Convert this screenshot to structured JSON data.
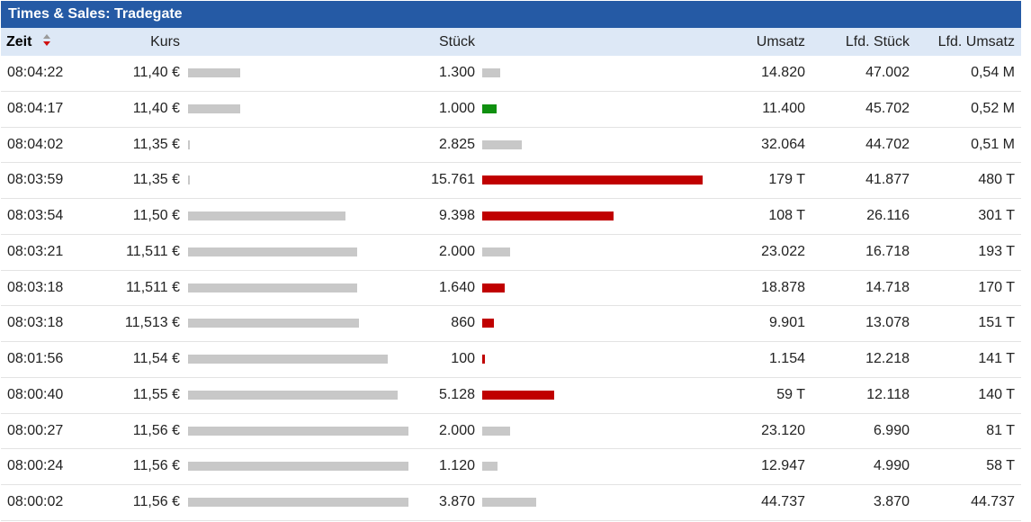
{
  "title": "Times & Sales: Tradegate",
  "columns": {
    "zeit": "Zeit",
    "kurs": "Kurs",
    "stueck": "Stück",
    "umsatz": "Umsatz",
    "lfd_stueck": "Lfd. Stück",
    "lfd_umsatz": "Lfd. Umsatz"
  },
  "sort": {
    "column": "zeit",
    "direction": "descending",
    "icon": "sort-desc-icon"
  },
  "colors": {
    "title_bar": "#255aa5",
    "header_bg": "#dde8f6",
    "neutral_bar": "#c8c8c8",
    "up_bar": "#109010",
    "down_bar": "#c00000"
  },
  "rows": [
    {
      "zeit": "08:04:22",
      "kurs": "11,40 €",
      "kurs_value": 11.4,
      "stueck": "1.300",
      "stueck_value": 1300,
      "direction": "neutral",
      "umsatz": "14.820",
      "lfd_stueck": "47.002",
      "lfd_umsatz": "0,54 M"
    },
    {
      "zeit": "08:04:17",
      "kurs": "11,40 €",
      "kurs_value": 11.4,
      "stueck": "1.000",
      "stueck_value": 1000,
      "direction": "up",
      "umsatz": "11.400",
      "lfd_stueck": "45.702",
      "lfd_umsatz": "0,52 M"
    },
    {
      "zeit": "08:04:02",
      "kurs": "11,35 €",
      "kurs_value": 11.35,
      "stueck": "2.825",
      "stueck_value": 2825,
      "direction": "neutral",
      "umsatz": "32.064",
      "lfd_stueck": "44.702",
      "lfd_umsatz": "0,51 M"
    },
    {
      "zeit": "08:03:59",
      "kurs": "11,35 €",
      "kurs_value": 11.35,
      "stueck": "15.761",
      "stueck_value": 15761,
      "direction": "down",
      "umsatz": "179 T",
      "lfd_stueck": "41.877",
      "lfd_umsatz": "480 T"
    },
    {
      "zeit": "08:03:54",
      "kurs": "11,50 €",
      "kurs_value": 11.5,
      "stueck": "9.398",
      "stueck_value": 9398,
      "direction": "down",
      "umsatz": "108 T",
      "lfd_stueck": "26.116",
      "lfd_umsatz": "301 T"
    },
    {
      "zeit": "08:03:21",
      "kurs": "11,511 €",
      "kurs_value": 11.511,
      "stueck": "2.000",
      "stueck_value": 2000,
      "direction": "neutral",
      "umsatz": "23.022",
      "lfd_stueck": "16.718",
      "lfd_umsatz": "193 T"
    },
    {
      "zeit": "08:03:18",
      "kurs": "11,511 €",
      "kurs_value": 11.511,
      "stueck": "1.640",
      "stueck_value": 1640,
      "direction": "down",
      "umsatz": "18.878",
      "lfd_stueck": "14.718",
      "lfd_umsatz": "170 T"
    },
    {
      "zeit": "08:03:18",
      "kurs": "11,513 €",
      "kurs_value": 11.513,
      "stueck": "860",
      "stueck_value": 860,
      "direction": "down",
      "umsatz": "9.901",
      "lfd_stueck": "13.078",
      "lfd_umsatz": "151 T"
    },
    {
      "zeit": "08:01:56",
      "kurs": "11,54 €",
      "kurs_value": 11.54,
      "stueck": "100",
      "stueck_value": 100,
      "direction": "down",
      "umsatz": "1.154",
      "lfd_stueck": "12.218",
      "lfd_umsatz": "141 T"
    },
    {
      "zeit": "08:00:40",
      "kurs": "11,55 €",
      "kurs_value": 11.55,
      "stueck": "5.128",
      "stueck_value": 5128,
      "direction": "down",
      "umsatz": "59 T",
      "lfd_stueck": "12.118",
      "lfd_umsatz": "140 T"
    },
    {
      "zeit": "08:00:27",
      "kurs": "11,56 €",
      "kurs_value": 11.56,
      "stueck": "2.000",
      "stueck_value": 2000,
      "direction": "neutral",
      "umsatz": "23.120",
      "lfd_stueck": "6.990",
      "lfd_umsatz": "81 T"
    },
    {
      "zeit": "08:00:24",
      "kurs": "11,56 €",
      "kurs_value": 11.56,
      "stueck": "1.120",
      "stueck_value": 1120,
      "direction": "neutral",
      "umsatz": "12.947",
      "lfd_stueck": "4.990",
      "lfd_umsatz": "58 T"
    },
    {
      "zeit": "08:00:02",
      "kurs": "11,56 €",
      "kurs_value": 11.56,
      "stueck": "3.870",
      "stueck_value": 3870,
      "direction": "neutral",
      "umsatz": "44.737",
      "lfd_stueck": "3.870",
      "lfd_umsatz": "44.737"
    }
  ]
}
